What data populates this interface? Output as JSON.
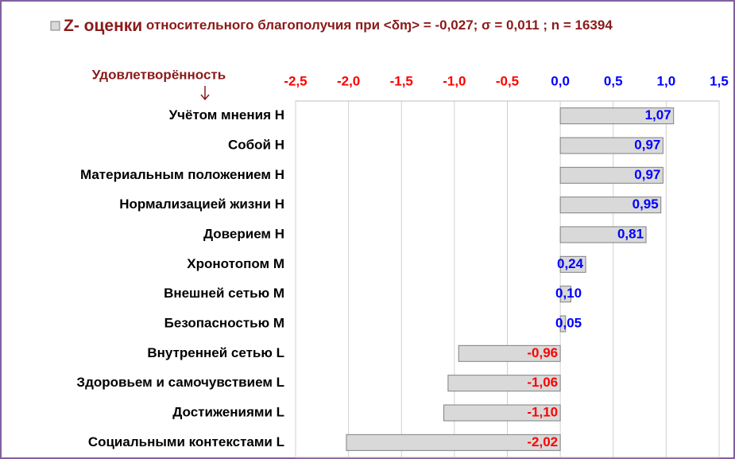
{
  "chart_data": {
    "type": "bar",
    "orientation": "horizontal",
    "legend_name": "Z- оценки",
    "title": "относительного благополучия при <δɱ> = -0,027; σ = 0,011 ; n = 16394",
    "ylabel": "Удовлетворённость",
    "categories": [
      "Учётом  мнения H",
      "Собой H",
      "Материальным положением H",
      "Нормализацией жизни H",
      "Доверием  H",
      "Хронотопом M",
      "Внешней сетью M",
      "Безопасностью M",
      "Внутренней сетью L",
      "Здоровьем и самочувствием  L",
      "Достижениями L",
      "Социальными контекстами L"
    ],
    "series": [
      {
        "name": "Z- оценки",
        "color": "#d9d9d9",
        "values": [
          1.07,
          0.97,
          0.97,
          0.95,
          0.81,
          0.24,
          0.1,
          0.05,
          -0.96,
          -1.06,
          -1.1,
          -2.02
        ],
        "value_labels": [
          "1,07",
          "0,97",
          "0,97",
          "0,95",
          "0,81",
          "0,24",
          "0,10",
          "0,05",
          "-0,96",
          "-1,06",
          "-1,10",
          "-2,02"
        ]
      }
    ],
    "xlim": [
      -2.5,
      1.5
    ],
    "xticks": [
      {
        "value": -2.5,
        "label": "-2,5"
      },
      {
        "value": -2.0,
        "label": "-2,0"
      },
      {
        "value": -1.5,
        "label": "-1,5"
      },
      {
        "value": -1.0,
        "label": "-1,0"
      },
      {
        "value": -0.5,
        "label": "-0,5"
      },
      {
        "value": 0,
        "label": "0,0"
      },
      {
        "value": 0.5,
        "label": "0,5"
      },
      {
        "value": 1.0,
        "label": "1,0"
      },
      {
        "value": 1.5,
        "label": "1,5"
      }
    ],
    "grid": true
  }
}
